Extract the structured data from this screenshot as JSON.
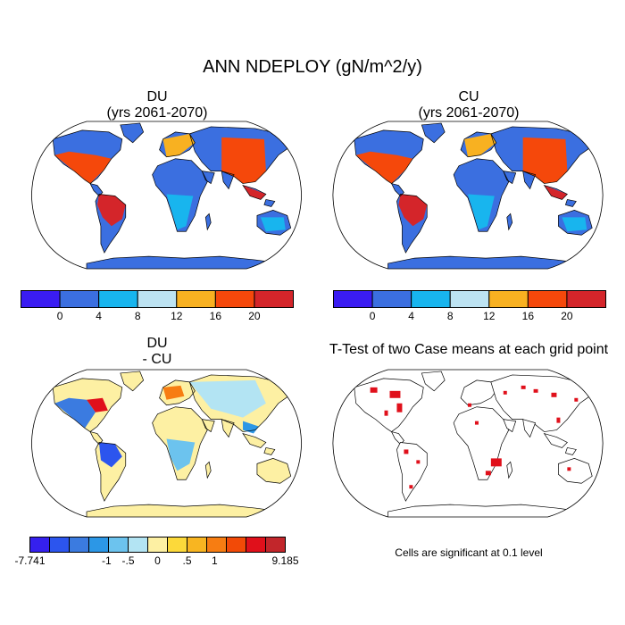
{
  "figure": {
    "title": "ANN NDEPLOY (gN/m^2/y)"
  },
  "panels": {
    "du": {
      "title": "DU",
      "subtitle": "(yrs 2061-2070)"
    },
    "cu": {
      "title": "CU",
      "subtitle": "(yrs 2061-2070)"
    },
    "diff": {
      "title": "DU",
      "subtitle": "- CU"
    },
    "ttest": {
      "title": "T-Test of two Case means at each grid point",
      "note": "Cells are significant at 0.1 level"
    }
  },
  "colorbars": {
    "main": {
      "colors": [
        "#3a1cf2",
        "#3b6fe0",
        "#18b5ee",
        "#bde3f2",
        "#f8b121",
        "#f5480b",
        "#d4252a"
      ],
      "labels": [
        "0",
        "4",
        "8",
        "12",
        "16",
        "20"
      ]
    },
    "diff": {
      "colors": [
        "#3520ee",
        "#2c55ee",
        "#3b7be0",
        "#2c97e6",
        "#6cc3ee",
        "#b3e4f3",
        "#fdf0a3",
        "#fcd93a",
        "#f8b521",
        "#f77d12",
        "#f24a07",
        "#e0101b",
        "#c2262b"
      ],
      "labels": [
        "-7.741",
        "-1",
        "-.5",
        "0",
        ".5",
        "1",
        "9.185"
      ]
    }
  },
  "chart_data": {
    "type": "heatmap",
    "title": "ANN NDEPLOY (gN/m^2/y)",
    "variable": "NDEPLOY",
    "units": "gN/m^2/y",
    "projection": "Robinson",
    "panels": [
      {
        "name": "DU",
        "period": "yrs 2061-2070",
        "contour_levels": [
          0,
          4,
          8,
          12,
          16,
          20
        ]
      },
      {
        "name": "CU",
        "period": "yrs 2061-2070",
        "contour_levels": [
          0,
          4,
          8,
          12,
          16,
          20
        ]
      },
      {
        "name": "DU - CU",
        "min": -7.741,
        "max": 9.185,
        "contour_levels": [
          -1,
          -0.5,
          0,
          0.5,
          1
        ]
      },
      {
        "name": "T-Test of two Case means at each grid point",
        "significance_level": 0.1
      }
    ]
  }
}
